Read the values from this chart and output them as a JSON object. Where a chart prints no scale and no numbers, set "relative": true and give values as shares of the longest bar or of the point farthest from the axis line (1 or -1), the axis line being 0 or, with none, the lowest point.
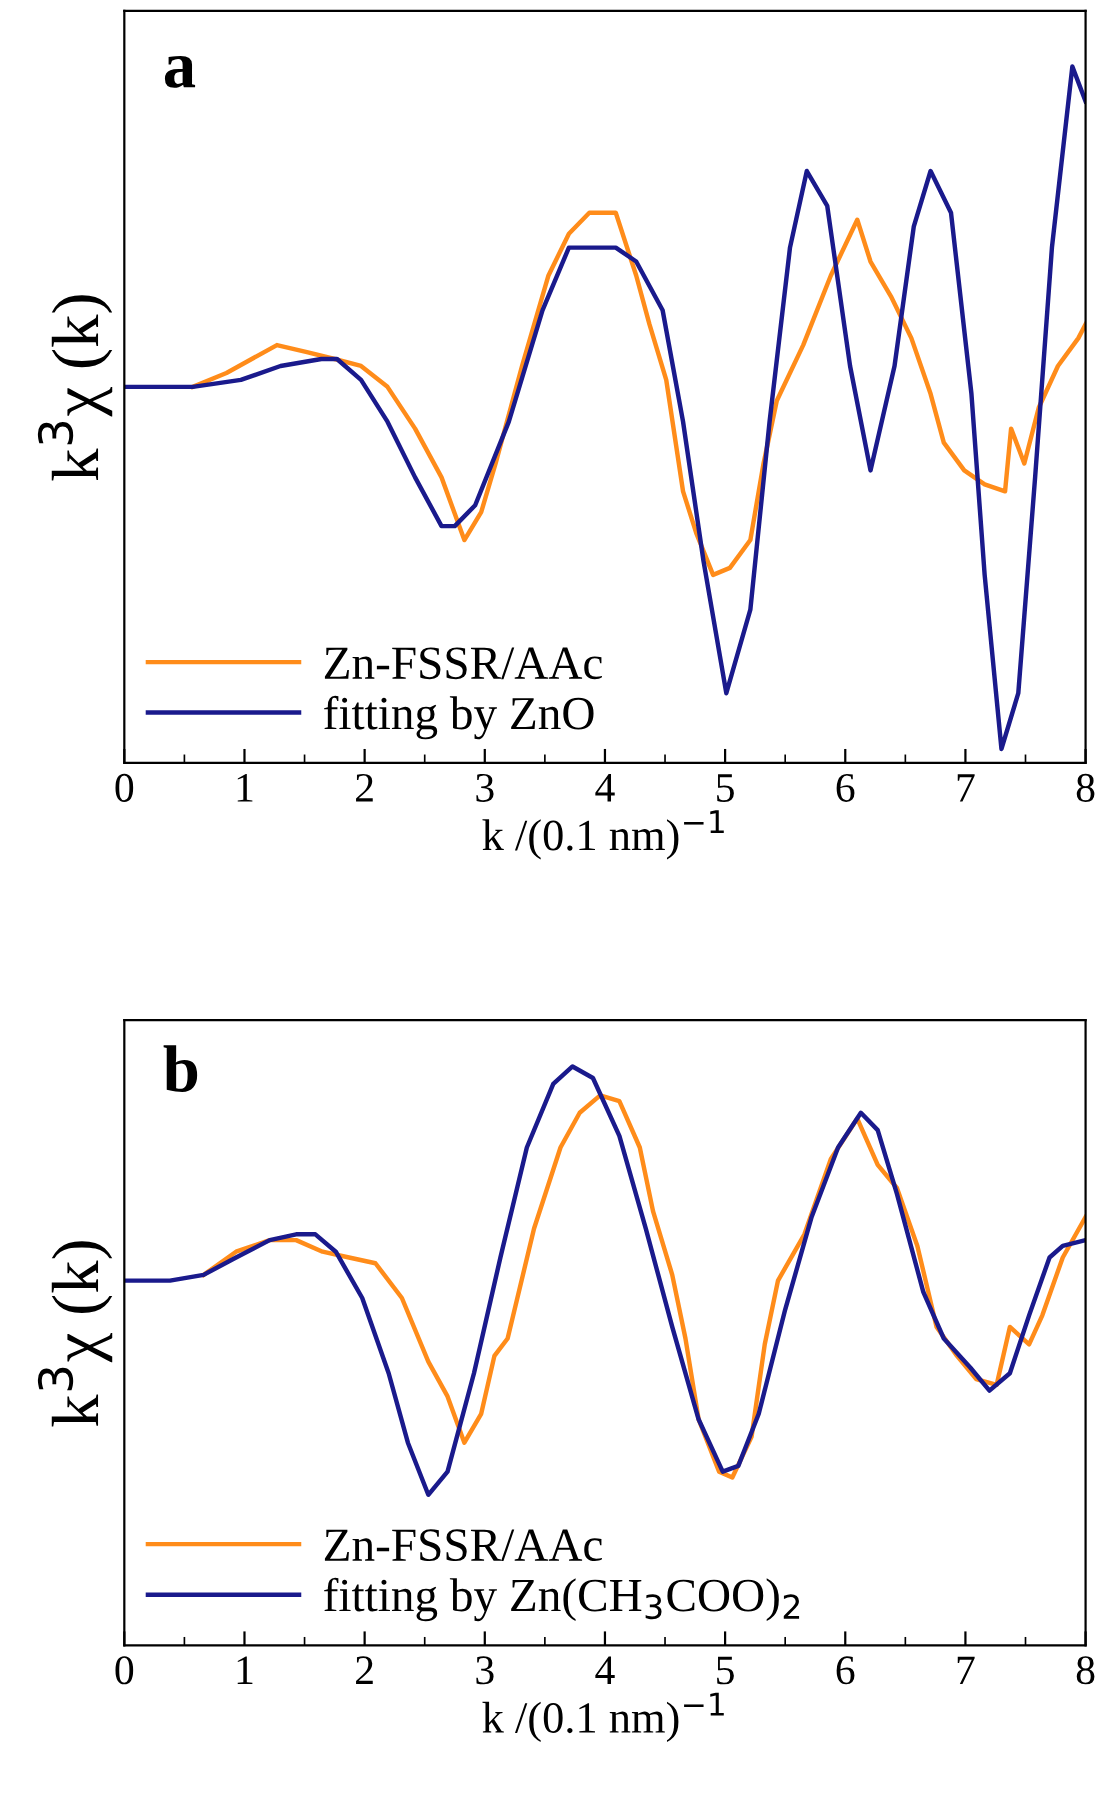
{
  "chart_data": [
    {
      "type": "line",
      "title": "a",
      "xlabel": "k /(0.1 nm)$^{−1}$",
      "ylabel": "k$^{3}$χ (k)",
      "relative": true,
      "xlim": [
        0,
        8
      ],
      "xticks": [
        0,
        1,
        2,
        3,
        4,
        5,
        6,
        7,
        8
      ],
      "legend": "bottom left",
      "tick_labels": "x",
      "series": [
        {
          "name": "Zn-FSSR/AAc",
          "color": "#ff8c1a",
          "x": [
            0.57,
            0.85,
            1.27,
            1.52,
            1.75,
            1.97,
            2.19,
            2.42,
            2.64,
            2.83,
            2.97,
            3.09,
            3.31,
            3.53,
            3.7,
            3.87,
            4.09,
            4.26,
            4.37,
            4.51,
            4.65,
            4.76,
            4.9,
            5.04,
            5.21,
            5.32,
            5.43,
            5.65,
            5.88,
            6.1,
            6.21,
            6.38,
            6.55,
            6.71,
            6.82,
            6.99,
            7.16,
            7.33,
            7.38,
            7.49,
            7.61,
            7.77,
            7.94,
            8.0
          ],
          "values": [
            0.54,
            0.56,
            0.6,
            0.59,
            0.58,
            0.57,
            0.54,
            0.48,
            0.41,
            0.32,
            0.36,
            0.43,
            0.57,
            0.7,
            0.76,
            0.79,
            0.79,
            0.7,
            0.63,
            0.55,
            0.39,
            0.33,
            0.27,
            0.28,
            0.32,
            0.43,
            0.52,
            0.6,
            0.7,
            0.78,
            0.72,
            0.67,
            0.61,
            0.53,
            0.46,
            0.42,
            0.4,
            0.39,
            0.48,
            0.43,
            0.51,
            0.57,
            0.61,
            0.63
          ]
        },
        {
          "name": "fitting by ZnO",
          "color": "#1a1a8c",
          "x": [
            0,
            0.57,
            0.97,
            1.3,
            1.64,
            1.77,
            1.97,
            2.19,
            2.42,
            2.64,
            2.75,
            2.92,
            3.2,
            3.48,
            3.7,
            3.87,
            4.09,
            4.26,
            4.48,
            4.65,
            4.82,
            5.01,
            5.21,
            5.37,
            5.54,
            5.68,
            5.85,
            6.04,
            6.21,
            6.41,
            6.57,
            6.71,
            6.88,
            7.05,
            7.16,
            7.3,
            7.44,
            7.58,
            7.72,
            7.89,
            8.0
          ],
          "values": [
            0.54,
            0.54,
            0.55,
            0.57,
            0.58,
            0.58,
            0.55,
            0.49,
            0.41,
            0.34,
            0.34,
            0.37,
            0.49,
            0.65,
            0.74,
            0.74,
            0.74,
            0.72,
            0.65,
            0.49,
            0.29,
            0.1,
            0.22,
            0.49,
            0.74,
            0.85,
            0.8,
            0.57,
            0.42,
            0.57,
            0.77,
            0.85,
            0.79,
            0.53,
            0.27,
            0.02,
            0.1,
            0.41,
            0.74,
            1.0,
            0.95
          ]
        }
      ]
    },
    {
      "type": "line",
      "title": "b",
      "xlabel": "k /(0.1 nm)$^{−1}$",
      "ylabel": "k$^{3}$χ (k)",
      "relative": true,
      "xlim": [
        0,
        8
      ],
      "xticks": [
        0,
        1,
        2,
        3,
        4,
        5,
        6,
        7,
        8
      ],
      "legend": "bottom left",
      "tick_labels": "x",
      "series": [
        {
          "name": "Zn-FSSR/AAc",
          "color": "#ff8c1a",
          "x": [
            0.66,
            0.93,
            1.21,
            1.43,
            1.65,
            1.87,
            2.09,
            2.31,
            2.53,
            2.69,
            2.83,
            2.97,
            3.08,
            3.19,
            3.41,
            3.63,
            3.79,
            3.96,
            4.12,
            4.29,
            4.4,
            4.56,
            4.67,
            4.78,
            4.95,
            5.06,
            5.22,
            5.33,
            5.44,
            5.66,
            5.88,
            6.1,
            6.27,
            6.43,
            6.6,
            6.76,
            6.93,
            7.09,
            7.26,
            7.37,
            7.53,
            7.64,
            7.81,
            8.0
          ],
          "values": [
            0.64,
            0.68,
            0.7,
            0.7,
            0.68,
            0.67,
            0.66,
            0.6,
            0.49,
            0.43,
            0.35,
            0.4,
            0.5,
            0.53,
            0.72,
            0.86,
            0.92,
            0.95,
            0.94,
            0.86,
            0.75,
            0.64,
            0.53,
            0.39,
            0.3,
            0.29,
            0.36,
            0.52,
            0.63,
            0.71,
            0.84,
            0.91,
            0.83,
            0.79,
            0.69,
            0.55,
            0.5,
            0.46,
            0.45,
            0.55,
            0.52,
            0.57,
            0.67,
            0.74
          ]
        },
        {
          "name": "fitting by Zn(CH$_{3}$COO)$_{2}$",
          "color": "#1a1a8c",
          "x": [
            0,
            0.38,
            0.66,
            0.93,
            1.21,
            1.43,
            1.59,
            1.76,
            1.98,
            2.2,
            2.36,
            2.53,
            2.69,
            2.91,
            3.13,
            3.35,
            3.57,
            3.73,
            3.9,
            4.12,
            4.34,
            4.56,
            4.78,
            4.98,
            5.11,
            5.28,
            5.5,
            5.72,
            5.94,
            6.13,
            6.27,
            6.43,
            6.65,
            6.82,
            7.04,
            7.2,
            7.37,
            7.53,
            7.7,
            7.81,
            8.0
          ],
          "values": [
            0.63,
            0.63,
            0.64,
            0.67,
            0.7,
            0.71,
            0.71,
            0.68,
            0.6,
            0.47,
            0.35,
            0.26,
            0.3,
            0.47,
            0.67,
            0.86,
            0.97,
            1.0,
            0.98,
            0.88,
            0.72,
            0.55,
            0.39,
            0.3,
            0.31,
            0.4,
            0.58,
            0.74,
            0.86,
            0.92,
            0.89,
            0.78,
            0.61,
            0.53,
            0.48,
            0.44,
            0.47,
            0.57,
            0.67,
            0.69,
            0.7
          ]
        }
      ]
    }
  ]
}
